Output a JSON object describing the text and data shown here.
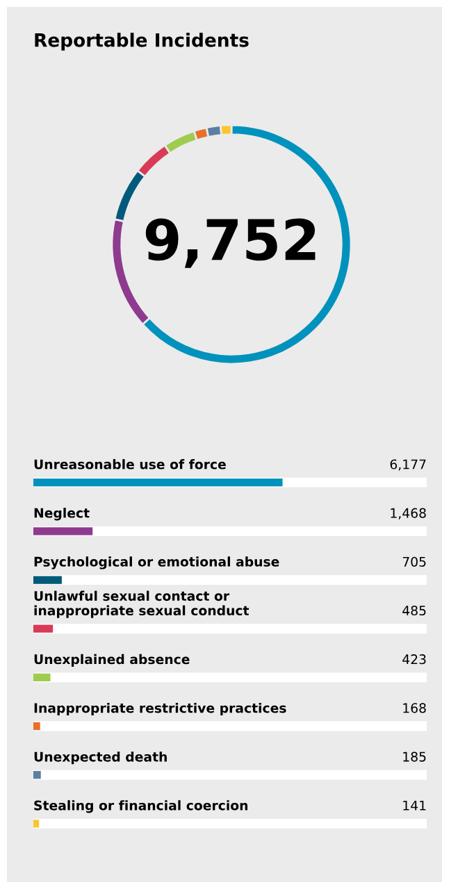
{
  "chart_data": [
    {
      "type": "donut",
      "title": "Reportable Incidents",
      "annotations": [
        "9,752"
      ],
      "categories": [
        null,
        null,
        null,
        null,
        null,
        null,
        null,
        null
      ],
      "values": [
        63.34,
        15.05,
        7.23,
        4.97,
        4.34,
        1.72,
        1.9,
        1.45
      ],
      "colors": [
        "#0092bc",
        "#8e3a8f",
        "#005a7a",
        "#d93a55",
        "#9fcc4f",
        "#e8702a",
        "#5a7fa0",
        "#fbc52d"
      ]
    },
    {
      "type": "bar",
      "orientation": "horizontal",
      "categories": [
        "Unreasonable use of force",
        "Neglect",
        "Psychological or emotional abuse",
        "Unlawful sexual contact or\ninappropriate sexual conduct",
        "Unexplained absence",
        "Inappropriate restrictive practices",
        "Unexpected death",
        "Stealing or financial coercion"
      ],
      "values": [
        6177,
        1468,
        705,
        485,
        423,
        168,
        185,
        141
      ],
      "colors": [
        "#0092bc",
        "#8e3a8f",
        "#005a7a",
        "#d93a55",
        "#9fcc4f",
        "#e8702a",
        "#5a7fa0",
        "#fbc52d"
      ],
      "value_labels": [
        "6,177",
        "1,468",
        "705",
        "485",
        "423",
        "168",
        "185",
        "141"
      ],
      "xlim": [
        0,
        9752
      ],
      "tick_labels": false
    }
  ]
}
